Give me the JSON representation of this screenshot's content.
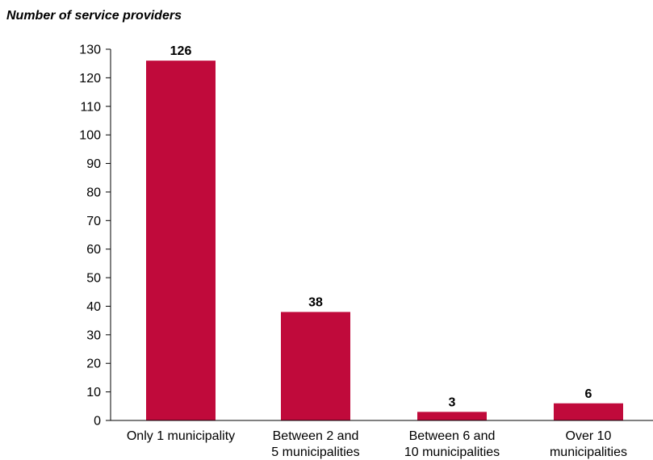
{
  "chart_data": {
    "type": "bar",
    "ylabel": "Number of service providers",
    "xlabel": "",
    "categories": [
      [
        "Only 1 municipality"
      ],
      [
        "Between 2 and",
        "5 municipalities"
      ],
      [
        "Between 6 and",
        "10 municipalities"
      ],
      [
        "Over 10",
        "municipalities"
      ]
    ],
    "values": [
      126,
      38,
      3,
      6
    ],
    "data_labels": [
      "126",
      "38",
      "3",
      "6"
    ],
    "ylim": [
      0,
      130
    ],
    "yticks": [
      0,
      10,
      20,
      30,
      40,
      50,
      60,
      70,
      80,
      90,
      100,
      110,
      120,
      130
    ],
    "grid": false,
    "legend": "none",
    "bar_color": "#C00A3B"
  }
}
